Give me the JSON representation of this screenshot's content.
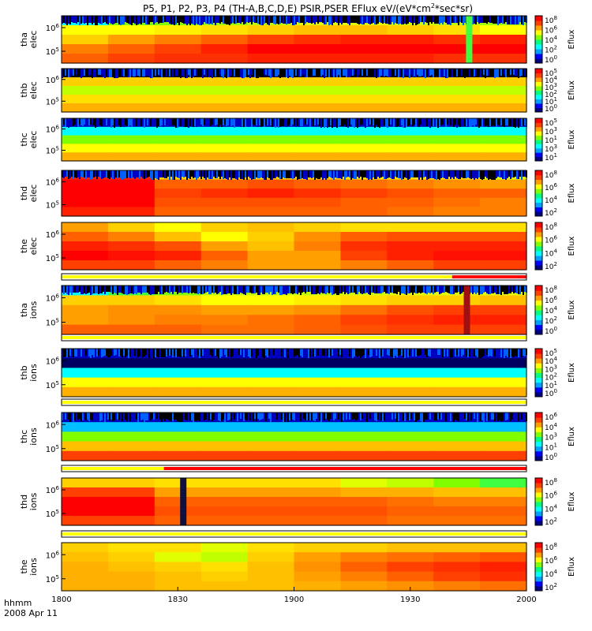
{
  "chart_data": {
    "type": "heatmap",
    "title": "P5, P1, P2, P3, P4 (TH-A,B,C,D,E) PSIR,PSER EFlux eV/(eV*cm",
    "title_sup": "2",
    "title_tail": "*sec*sr)",
    "x_axis": {
      "ticks": [
        "1800",
        "1830",
        "1900",
        "1930",
        "2000"
      ],
      "label_line1": "hhmm",
      "label_line2": "2008 Apr 11"
    },
    "colorbar_label": "Eflux",
    "colormap": [
      "#000080",
      "#0000ff",
      "#00a0ff",
      "#00ffff",
      "#00ff80",
      "#80ff00",
      "#ffff00",
      "#ffa000",
      "#ff4000",
      "#ff0000"
    ],
    "panels": [
      {
        "label_line1": "tha",
        "label_line2": "elec",
        "yticks": [
          "10",
          "10"
        ],
        "yexp": [
          "6",
          "5"
        ],
        "cbar_exp": [
          "8",
          "6",
          "4",
          "2",
          "0"
        ],
        "rows": [
          [
            "#00ffff",
            "#80ff00",
            "#80ff00",
            "#a0ff00",
            "#c0ff00",
            "#e0ff00",
            "#e0ff00",
            "#d0ff00",
            "#c0ff00",
            "#a0ff00"
          ],
          [
            "#ffff00",
            "#ffff00",
            "#fff000",
            "#ffe000",
            "#ffd000",
            "#ffc000",
            "#ffc000",
            "#ffd000",
            "#ffe000",
            "#ffff00"
          ],
          [
            "#ffd000",
            "#ffa000",
            "#ff8000",
            "#ff6000",
            "#ff4000",
            "#ff3000",
            "#ff2000",
            "#ff2000",
            "#ff3000",
            "#ff2000"
          ],
          [
            "#ff8000",
            "#ff6000",
            "#ff4000",
            "#ff2000",
            "#ff0000",
            "#ff0000",
            "#ff0000",
            "#ff0000",
            "#ff0000",
            "#ff0000"
          ],
          [
            "#ff6000",
            "#ff4000",
            "#ff3000",
            "#ff3000",
            "#ff2000",
            "#ff2000",
            "#ff2000",
            "#ff2000",
            "#ff3000",
            "#ff3000"
          ]
        ],
        "noise_top": true,
        "events": [
          {
            "t": 0.87,
            "color": "#40ff40"
          }
        ]
      },
      {
        "label_line1": "thb",
        "label_line2": "elec",
        "yticks": [
          "10",
          "10"
        ],
        "yexp": [
          "6",
          "5"
        ],
        "cbar_exp": [
          "5",
          "4",
          "3",
          "2",
          "1",
          "0"
        ],
        "rows": [
          [
            "#000020",
            "#000020",
            "#000020",
            "#000020",
            "#000020",
            "#000020",
            "#000020",
            "#000020",
            "#000020",
            "#000020"
          ],
          [
            "#ffd000",
            "#ffd000",
            "#ffd000",
            "#ffd000",
            "#ffd000",
            "#ffd000",
            "#ffd000",
            "#ffd000",
            "#ffd000",
            "#ffd000"
          ],
          [
            "#c0ff00",
            "#c0ff00",
            "#c0ff00",
            "#c0ff00",
            "#c0ff00",
            "#c0ff00",
            "#c0ff00",
            "#c0ff00",
            "#c0ff00",
            "#c0ff00"
          ],
          [
            "#ffe000",
            "#ffe000",
            "#ffe000",
            "#ffe000",
            "#ffe000",
            "#ffe000",
            "#ffe000",
            "#ffe000",
            "#ffe000",
            "#ffe000"
          ],
          [
            "#ffb000",
            "#ffb000",
            "#ffb000",
            "#ffb000",
            "#ffb000",
            "#ffb000",
            "#ffb000",
            "#ffb000",
            "#ffb000",
            "#ffb000"
          ]
        ],
        "noise_top": true,
        "events": []
      },
      {
        "label_line1": "thc",
        "label_line2": "elec",
        "yticks": [
          "10",
          "10"
        ],
        "yexp": [
          "6",
          "5"
        ],
        "cbar_exp": [
          "5",
          "3",
          "1",
          "3",
          "1"
        ],
        "rows": [
          [
            "#0000c0",
            "#0000c0",
            "#0000c0",
            "#0000c0",
            "#0000c0",
            "#0000c0",
            "#0000c0",
            "#0000c0",
            "#0000c0",
            "#0000c0"
          ],
          [
            "#00ffff",
            "#00ffff",
            "#00ffff",
            "#00ffff",
            "#00ffff",
            "#00ffff",
            "#00ffff",
            "#00ffff",
            "#00ffff",
            "#00ffff"
          ],
          [
            "#80ff00",
            "#80ff00",
            "#80ff00",
            "#80ff00",
            "#80ff00",
            "#80ff00",
            "#80ff00",
            "#80ff00",
            "#80ff00",
            "#80ff00"
          ],
          [
            "#ffff00",
            "#ffff00",
            "#ffff00",
            "#ffff00",
            "#ffff00",
            "#ffff00",
            "#ffff00",
            "#ffff00",
            "#ffff00",
            "#ffff00"
          ],
          [
            "#ffb000",
            "#ffb000",
            "#ffb000",
            "#ffb000",
            "#ffb000",
            "#ffb000",
            "#ffb000",
            "#ffb000",
            "#ffb000",
            "#ffb000"
          ]
        ],
        "noise_top": true,
        "events": []
      },
      {
        "label_line1": "thd",
        "label_line2": "elec",
        "yticks": [
          "10",
          "10"
        ],
        "yexp": [
          "6",
          "5"
        ],
        "cbar_exp": [
          "8",
          "6",
          "4",
          "2"
        ],
        "rows": [
          [
            "#ff2000",
            "#ff2000",
            "#ffd000",
            "#ffd000",
            "#ffd000",
            "#ffd000",
            "#ffe000",
            "#ffe000",
            "#ffe000",
            "#e0ff00"
          ],
          [
            "#ff0000",
            "#ff0000",
            "#ff6000",
            "#ff6000",
            "#ff5000",
            "#ff6000",
            "#ff7000",
            "#ff8000",
            "#ff9000",
            "#ffa000"
          ],
          [
            "#ff0000",
            "#ff0000",
            "#ff4000",
            "#ff3000",
            "#ff2000",
            "#ff3000",
            "#ff4000",
            "#ff5000",
            "#ff6000",
            "#ff6000"
          ],
          [
            "#ff0000",
            "#ff0000",
            "#ff5000",
            "#ff5000",
            "#ff5000",
            "#ff5000",
            "#ff6000",
            "#ff6000",
            "#ff7000",
            "#ff8000"
          ],
          [
            "#ff2000",
            "#ff2000",
            "#ff6000",
            "#ff6000",
            "#ff6000",
            "#ff6000",
            "#ff6000",
            "#ff7000",
            "#ff8000",
            "#ff8000"
          ]
        ],
        "noise_top": true,
        "events": []
      },
      {
        "label_line1": "the",
        "label_line2": "elec",
        "yticks": [
          "10",
          "10"
        ],
        "yexp": [
          "6",
          "5"
        ],
        "cbar_exp": [
          "8",
          "6",
          "4",
          "2"
        ],
        "rows": [
          [
            "#ffa000",
            "#ffd000",
            "#ffff00",
            "#ffd000",
            "#ffc000",
            "#ffd000",
            "#ffe000",
            "#ffe000",
            "#ffe000",
            "#ffe000"
          ],
          [
            "#ff6000",
            "#ff8000",
            "#ffc000",
            "#ffff00",
            "#ffd000",
            "#ff9000",
            "#ff6000",
            "#ff5000",
            "#ff5000",
            "#ff5000"
          ],
          [
            "#ff2000",
            "#ff3000",
            "#ff5000",
            "#ffa000",
            "#ffc000",
            "#ff8000",
            "#ff3000",
            "#ff2000",
            "#ff2000",
            "#ff2000"
          ],
          [
            "#ff0000",
            "#ff1000",
            "#ff2000",
            "#ff6000",
            "#ffa000",
            "#ffa000",
            "#ff4000",
            "#ff2000",
            "#ff1000",
            "#ff1000"
          ],
          [
            "#ff4000",
            "#ff4000",
            "#ff6000",
            "#ff8000",
            "#ffa000",
            "#ffa000",
            "#ff8000",
            "#ff6000",
            "#ff4000",
            "#ff4000"
          ]
        ],
        "noise_top": false,
        "events": []
      },
      {
        "label_line1": "tha",
        "label_line2": "ions",
        "yticks": [
          "10",
          "10"
        ],
        "yexp": [
          "6",
          "5"
        ],
        "cbar_exp": [
          "8",
          "6",
          "4",
          "2",
          "0"
        ],
        "rows": [
          [
            "#00ffff",
            "#40ff40",
            "#80ff00",
            "#c0ff00",
            "#c0ff00",
            "#c0ff00",
            "#d0ff00",
            "#e0ff00",
            "#e0ff00",
            "#e0ff00"
          ],
          [
            "#ffd000",
            "#ffd000",
            "#ffe000",
            "#ffff00",
            "#ffff00",
            "#fff000",
            "#ffe000",
            "#ffd000",
            "#ffd000",
            "#ffc000"
          ],
          [
            "#ffa000",
            "#ff9000",
            "#ff9000",
            "#ffa000",
            "#ffa000",
            "#ff9000",
            "#ff7000",
            "#ff5000",
            "#ff4000",
            "#ff4000"
          ],
          [
            "#ffa000",
            "#ff9000",
            "#ff8000",
            "#ff8000",
            "#ff7000",
            "#ff6000",
            "#ff4000",
            "#ff3000",
            "#ff2000",
            "#ff2000"
          ],
          [
            "#ff6000",
            "#ff6000",
            "#ff6000",
            "#ff7000",
            "#ff7000",
            "#ff6000",
            "#ff5000",
            "#ff4000",
            "#ff4000",
            "#ff4000"
          ]
        ],
        "noise_top": true,
        "events": [
          {
            "t": 0.865,
            "color": "#a01010"
          }
        ]
      },
      {
        "label_line1": "thb",
        "label_line2": "ions",
        "yticks": [
          "10",
          "10"
        ],
        "yexp": [
          "6",
          "5"
        ],
        "cbar_exp": [
          "5",
          "4",
          "3",
          "2",
          "1",
          "0"
        ],
        "rows": [
          [
            "#0000c0",
            "#0000c0",
            "#0000c0",
            "#0000c0",
            "#0000c0",
            "#0000c0",
            "#0000c0",
            "#0000c0",
            "#0000c0",
            "#0000c0"
          ],
          [
            "#000060",
            "#000060",
            "#000060",
            "#000060",
            "#000060",
            "#000060",
            "#000060",
            "#000060",
            "#000060",
            "#000060"
          ],
          [
            "#00ffff",
            "#00ffff",
            "#00ffff",
            "#00ffff",
            "#00ffff",
            "#00ffff",
            "#00ffff",
            "#00ffff",
            "#00ffff",
            "#00ffff"
          ],
          [
            "#ffff00",
            "#ffff00",
            "#ffff00",
            "#ffff00",
            "#ffff00",
            "#ffff00",
            "#ffff00",
            "#ffff00",
            "#ffff00",
            "#ffff00"
          ],
          [
            "#ffb000",
            "#ffb000",
            "#ffb000",
            "#ffb000",
            "#ffb000",
            "#ffb000",
            "#ffb000",
            "#ffb000",
            "#ffb000",
            "#ffb000"
          ]
        ],
        "noise_top": true,
        "events": []
      },
      {
        "label_line1": "thc",
        "label_line2": "ions",
        "yticks": [
          "10",
          "10"
        ],
        "yexp": [
          "6",
          "5"
        ],
        "cbar_exp": [
          "6",
          "4",
          "3",
          "1",
          "0"
        ],
        "rows": [
          [
            "#0000c0",
            "#0000c0",
            "#0000c0",
            "#0000c0",
            "#0000c0",
            "#0000c0",
            "#0000c0",
            "#0000c0",
            "#0000c0",
            "#0000c0"
          ],
          [
            "#00c0ff",
            "#00c0ff",
            "#00c0ff",
            "#00c0ff",
            "#00c0ff",
            "#00c0ff",
            "#00c0ff",
            "#00c0ff",
            "#00c0ff",
            "#00c0ff"
          ],
          [
            "#80ff00",
            "#80ff00",
            "#80ff00",
            "#80ff00",
            "#80ff00",
            "#80ff00",
            "#80ff00",
            "#80ff00",
            "#80ff00",
            "#80ff00"
          ],
          [
            "#ffc000",
            "#ffc000",
            "#ffc000",
            "#ffc000",
            "#ffc000",
            "#ffc000",
            "#ffc000",
            "#ffc000",
            "#ffc000",
            "#ffc000"
          ],
          [
            "#ff4000",
            "#ff4000",
            "#ff4000",
            "#ff4000",
            "#ff4000",
            "#ff4000",
            "#ff4000",
            "#ff4000",
            "#ff4000",
            "#ff4000"
          ]
        ],
        "noise_top": true,
        "events": []
      },
      {
        "label_line1": "thd",
        "label_line2": "ions",
        "yticks": [
          "10",
          "10"
        ],
        "yexp": [
          "6",
          "5"
        ],
        "cbar_exp": [
          "8",
          "6",
          "4",
          "2"
        ],
        "rows": [
          [
            "#ffd000",
            "#ffd000",
            "#ffe000",
            "#ffe000",
            "#ffe000",
            "#ffe000",
            "#e0ff00",
            "#c0ff00",
            "#80ff00",
            "#40ff40"
          ],
          [
            "#ff4000",
            "#ff4000",
            "#ffa000",
            "#ffa000",
            "#ffa000",
            "#ffa000",
            "#ffb000",
            "#ffb000",
            "#ffc000",
            "#ffc000"
          ],
          [
            "#ff0000",
            "#ff0000",
            "#ff6000",
            "#ff6000",
            "#ff6000",
            "#ff6000",
            "#ff6000",
            "#ff7000",
            "#ff8000",
            "#ff8000"
          ],
          [
            "#ff0000",
            "#ff0000",
            "#ff5000",
            "#ff5000",
            "#ff5000",
            "#ff5000",
            "#ff5000",
            "#ff6000",
            "#ff6000",
            "#ff6000"
          ],
          [
            "#ff4000",
            "#ff4000",
            "#ff6000",
            "#ff6000",
            "#ff6000",
            "#ff6000",
            "#ff6000",
            "#ff7000",
            "#ff7000",
            "#ff7000"
          ]
        ],
        "noise_top": false,
        "events": [
          {
            "t": 0.255,
            "color": "#101040"
          }
        ]
      },
      {
        "label_line1": "the",
        "label_line2": "ions",
        "yticks": [
          "10",
          "10"
        ],
        "yexp": [
          "6",
          "5"
        ],
        "cbar_exp": [
          "8",
          "6",
          "4",
          "2"
        ],
        "rows": [
          [
            "#ffd000",
            "#ffe000",
            "#ffe000",
            "#e0ff00",
            "#ffe000",
            "#ffd000",
            "#ffd000",
            "#ffc000",
            "#ffc000",
            "#ffc000"
          ],
          [
            "#ffc000",
            "#ffd000",
            "#e0ff00",
            "#c0ff00",
            "#ffd000",
            "#ffa000",
            "#ff8000",
            "#ff7000",
            "#ff6000",
            "#ff5000"
          ],
          [
            "#ffb000",
            "#ffc000",
            "#ffd000",
            "#ffe000",
            "#ffc000",
            "#ff9000",
            "#ff6000",
            "#ff4000",
            "#ff3000",
            "#ff2000"
          ],
          [
            "#ffb000",
            "#ffb000",
            "#ffc000",
            "#ffd000",
            "#ffc000",
            "#ffa000",
            "#ff8000",
            "#ff6000",
            "#ff4000",
            "#ff3000"
          ],
          [
            "#ffb000",
            "#ffb000",
            "#ffc000",
            "#ffc000",
            "#ffc000",
            "#ffb000",
            "#ffa000",
            "#ff9000",
            "#ff8000",
            "#ff7000"
          ]
        ],
        "noise_top": false,
        "events": []
      }
    ],
    "status_bars": [
      {
        "after_panel": 4,
        "segments": [
          {
            "from": 0.0,
            "to": 0.84,
            "color": "#ffff00"
          },
          {
            "from": 0.84,
            "to": 1.0,
            "color": "#ff0000"
          }
        ]
      },
      {
        "after_panel": 5,
        "segments": [
          {
            "from": 0.0,
            "to": 1.0,
            "color": "#ffff00"
          }
        ]
      },
      {
        "after_panel": 6,
        "segments": [
          {
            "from": 0.0,
            "to": 1.0,
            "color": "#ffff00"
          }
        ]
      },
      {
        "after_panel": 7,
        "segments": [
          {
            "from": 0.0,
            "to": 0.22,
            "color": "#ffff00"
          },
          {
            "from": 0.22,
            "to": 1.0,
            "color": "#ff0000"
          }
        ]
      },
      {
        "after_panel": 8,
        "segments": [
          {
            "from": 0.0,
            "to": 1.0,
            "color": "#ffff00"
          }
        ]
      }
    ]
  }
}
